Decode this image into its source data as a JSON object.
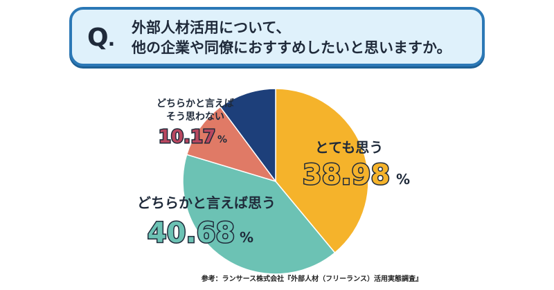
{
  "header": {
    "q_mark": "Q",
    "q_dot": ".",
    "line1": "外部人材活用について、",
    "line2": "他の企業や同僚におすすめしたいと思いますか。"
  },
  "chart_data": {
    "type": "pie",
    "slices": [
      {
        "label": "とても思う",
        "value": 38.98,
        "color": "#f5b32b",
        "pct_text": "38.98",
        "pct_color": "#f5b32b"
      },
      {
        "label": "どちらかと言えば思う",
        "value": 40.68,
        "color": "#6cc2b4",
        "pct_text": "40.68",
        "pct_color": "#6cc2b4"
      },
      {
        "label": "どちらかと言えばそう思わない",
        "label_lines": [
          "どちらかと言えば",
          "そう思わない"
        ],
        "value": 10.17,
        "color": "#e07a66",
        "pct_text": "10.17",
        "pct_color": "#b8475f"
      },
      {
        "label": "",
        "value": 10.17,
        "color": "#1d3f7a"
      }
    ],
    "percent_sign": "%"
  },
  "source": "参考：ランサース株式会社『外部人材（フリーランス）活用実態調査』"
}
